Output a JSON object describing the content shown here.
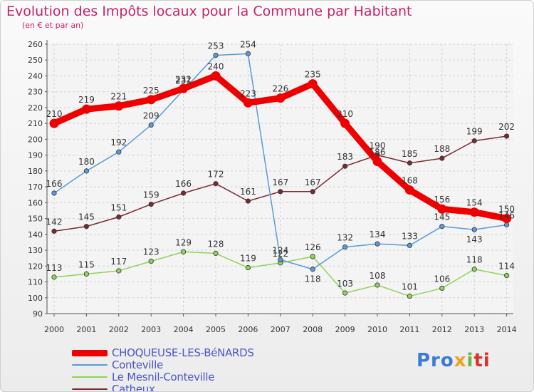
{
  "title": "Evolution des Impôts locaux pour la Commune par Habitant",
  "subtitle": "(en € et par an)",
  "logo": {
    "text": "Proxiti",
    "parts": [
      "Pro",
      "x",
      "i",
      "ti"
    ]
  },
  "chart_data": {
    "type": "line",
    "title": "Evolution des Impôts locaux pour la Commune par Habitant",
    "subtitle": "(en € et par an)",
    "xlabel": "",
    "ylabel": "",
    "ylim": [
      90,
      260
    ],
    "yticks": [
      90,
      100,
      110,
      120,
      130,
      140,
      150,
      160,
      170,
      180,
      190,
      200,
      210,
      220,
      230,
      240,
      250,
      260
    ],
    "categories": [
      "2000",
      "2001",
      "2002",
      "2003",
      "2004",
      "2005",
      "2006",
      "2007",
      "2008",
      "2009",
      "2010",
      "2011",
      "2012",
      "2013",
      "2014"
    ],
    "grid": true,
    "legend_position": "bottom-left",
    "series": [
      {
        "name": "Catheux",
        "color": "#7a2a30",
        "values": [
          142,
          145,
          151,
          159,
          166,
          172,
          161,
          167,
          167,
          183,
          190,
          185,
          188,
          199,
          202
        ],
        "label_pos": [
          "above",
          "above",
          "above",
          "above",
          "above",
          "above",
          "above",
          "above",
          "above",
          "above",
          "above",
          "above",
          "above",
          "above",
          "above"
        ]
      },
      {
        "name": "Le Mesnil-Conteville",
        "color": "#8ed35a",
        "values": [
          113,
          115,
          117,
          123,
          129,
          128,
          119,
          122,
          126,
          103,
          108,
          101,
          106,
          118,
          114
        ],
        "label_pos": [
          "above",
          "above",
          "above",
          "above",
          "above",
          "above",
          "above",
          "above",
          "above",
          "above",
          "above",
          "above",
          "above",
          "above",
          "above"
        ]
      },
      {
        "name": "Conteville",
        "color": "#5a9ad8",
        "values": [
          166,
          180,
          192,
          209,
          231,
          253,
          254,
          124,
          118,
          132,
          134,
          133,
          145,
          143,
          146
        ],
        "label_pos": [
          "above",
          "above",
          "above",
          "above",
          "above",
          "above",
          "above",
          "above",
          "below",
          "above",
          "above",
          "above",
          "above",
          "below",
          "above"
        ]
      },
      {
        "name": "CHOQUEUSE-LES-BéNARDS",
        "color": "#ee0000",
        "values": [
          210,
          219,
          221,
          225,
          232,
          240,
          223,
          226,
          235,
          210,
          186,
          168,
          156,
          154,
          150
        ],
        "label_pos": [
          "above",
          "above",
          "above",
          "above",
          "above",
          "above",
          "above",
          "above",
          "above",
          "above",
          "above",
          "above",
          "above",
          "above",
          "above"
        ]
      }
    ],
    "legend_order": [
      "CHOQUEUSE-LES-BéNARDS",
      "Conteville",
      "Le Mesnil-Conteville",
      "Catheux"
    ]
  }
}
